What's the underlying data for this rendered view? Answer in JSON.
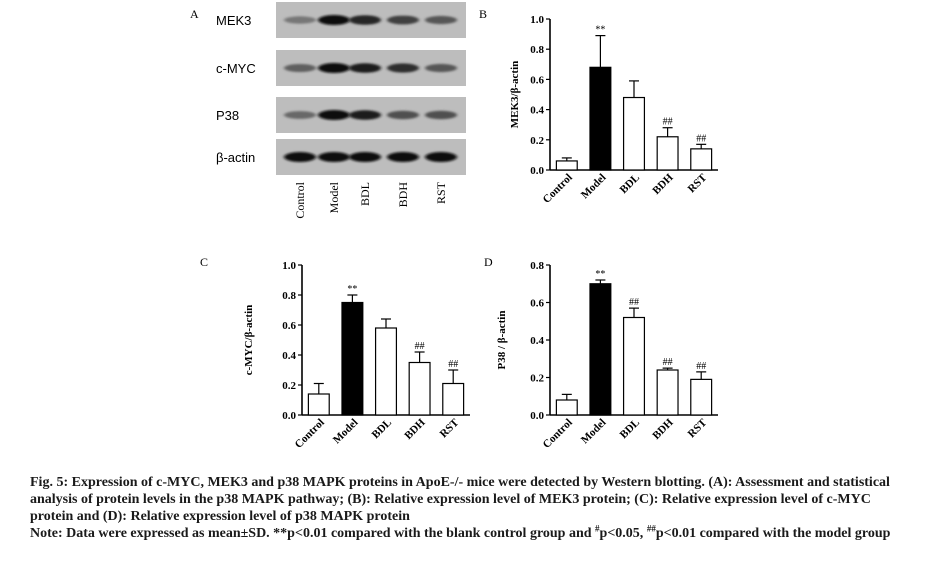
{
  "panel_letters": [
    "A",
    "B",
    "C",
    "D"
  ],
  "blot": {
    "rows": [
      "MEK3",
      "c-MYC",
      "P38",
      "β-actin"
    ],
    "lanes": [
      "Control",
      "Model",
      "BDL",
      "BDH",
      "RST"
    ],
    "intensity": [
      [
        0.35,
        1.0,
        0.85,
        0.7,
        0.55
      ],
      [
        0.5,
        1.0,
        0.9,
        0.8,
        0.55
      ],
      [
        0.45,
        1.0,
        0.9,
        0.6,
        0.6
      ],
      [
        1.0,
        1.0,
        1.0,
        1.0,
        1.0
      ]
    ]
  },
  "chart_data": [
    {
      "panel": "B",
      "type": "bar",
      "categories": [
        "Control",
        "Model",
        "BDL",
        "BDH",
        "RST"
      ],
      "values": [
        0.06,
        0.68,
        0.48,
        0.22,
        0.14
      ],
      "errors": [
        0.02,
        0.21,
        0.11,
        0.06,
        0.03
      ],
      "annotations": [
        "",
        "**",
        "",
        "##",
        "##"
      ],
      "fills": [
        "#ffffff",
        "#000000",
        "#ffffff",
        "#ffffff",
        "#ffffff"
      ],
      "ylabel": "MEK3/β-actin",
      "ylim": [
        0,
        1.0
      ],
      "yticks": [
        0.0,
        0.2,
        0.4,
        0.6,
        0.8,
        1.0
      ],
      "ytick_labels": [
        "0.0",
        "0.2",
        "0.4",
        "0.6",
        "0.8",
        "1.0"
      ]
    },
    {
      "panel": "C",
      "type": "bar",
      "categories": [
        "Control",
        "Model",
        "BDL",
        "BDH",
        "RST"
      ],
      "values": [
        0.14,
        0.75,
        0.58,
        0.35,
        0.21
      ],
      "errors": [
        0.07,
        0.05,
        0.06,
        0.07,
        0.09
      ],
      "annotations": [
        "",
        "**",
        "",
        "##",
        "##"
      ],
      "fills": [
        "#ffffff",
        "#000000",
        "#ffffff",
        "#ffffff",
        "#ffffff"
      ],
      "ylabel": "c-MYC/β-actin",
      "ylim": [
        0,
        1.0
      ],
      "yticks": [
        0.0,
        0.2,
        0.4,
        0.6,
        0.8,
        1.0
      ],
      "ytick_labels": [
        "0.0",
        "0.2",
        "0.4",
        "0.6",
        "0.8",
        "1.0"
      ]
    },
    {
      "panel": "D",
      "type": "bar",
      "categories": [
        "Control",
        "Model",
        "BDL",
        "BDH",
        "RST"
      ],
      "values": [
        0.08,
        0.7,
        0.52,
        0.24,
        0.19
      ],
      "errors": [
        0.03,
        0.02,
        0.05,
        0.01,
        0.04
      ],
      "annotations": [
        "",
        "**",
        "##",
        "##",
        "##"
      ],
      "fills": [
        "#ffffff",
        "#000000",
        "#ffffff",
        "#ffffff",
        "#ffffff"
      ],
      "ylabel": "P38 / β-actin",
      "ylim": [
        0,
        0.8
      ],
      "yticks": [
        0.0,
        0.2,
        0.4,
        0.6,
        0.8
      ],
      "ytick_labels": [
        "0.0",
        "0.2",
        "0.4",
        "0.6",
        "0.8"
      ]
    }
  ],
  "caption": {
    "fig_label": "Fig. 5:",
    "fig_text": " Expression of c-MYC, MEK3 and p38 MAPK proteins in ApoE-/- mice were detected by Western blotting. (A): Assessment and statistical analysis of protein levels in the p38 MAPK pathway; (B): Relative expression level of MEK3 protein; (C): Relative expression level of c-MYC protein and (D): Relative expression level of p38 MAPK protein",
    "note_part1": "Note: Data were expressed as mean±SD. **p<0.01 compared with the blank control group and ",
    "note_sup1": "#",
    "note_part2": "p<0.05, ",
    "note_sup2": "##",
    "note_part3": "p<0.01 compared with the model group"
  }
}
